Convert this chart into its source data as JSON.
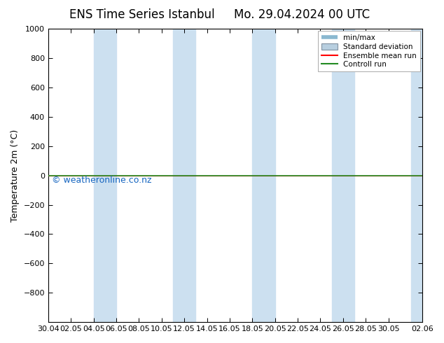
{
  "title_left": "ENS Time Series Istanbul",
  "title_right": "Mo. 29.04.2024 00 UTC",
  "ylabel": "Temperature 2m (°C)",
  "watermark": "© weatheronline.co.nz",
  "ylim_top": -1000,
  "ylim_bottom": 1000,
  "yticks": [
    -800,
    -600,
    -400,
    -200,
    0,
    200,
    400,
    600,
    800,
    1000
  ],
  "x_tick_labels": [
    "30.04",
    "02.05",
    "04.05",
    "06.05",
    "08.05",
    "10.05",
    "12.05",
    "14.05",
    "16.05",
    "18.05",
    "20.05",
    "22.05",
    "24.05",
    "26.05",
    "28.05",
    "30.05",
    "02.06"
  ],
  "x_tick_positions": [
    0,
    2,
    4,
    6,
    8,
    10,
    12,
    14,
    16,
    18,
    20,
    22,
    24,
    26,
    28,
    30,
    33
  ],
  "total_days": 33,
  "shaded_bands": [
    [
      4,
      6
    ],
    [
      11,
      13
    ],
    [
      18,
      20
    ],
    [
      25,
      27
    ],
    [
      32,
      33
    ]
  ],
  "shaded_color": "#cce0f0",
  "background_color": "#ffffff",
  "plot_bg_color": "#ffffff",
  "border_color": "#000000",
  "control_run_color": "#228B22",
  "ensemble_mean_color": "#ff0000",
  "std_dev_color": "#b0c4d8",
  "minmax_color": "#b0cce0",
  "legend_labels": [
    "min/max",
    "Standard deviation",
    "Ensemble mean run",
    "Controll run"
  ],
  "title_fontsize": 12,
  "axis_label_fontsize": 9,
  "tick_fontsize": 8,
  "watermark_color": "#1565c0",
  "watermark_fontsize": 9,
  "watermark_y_data": 30
}
